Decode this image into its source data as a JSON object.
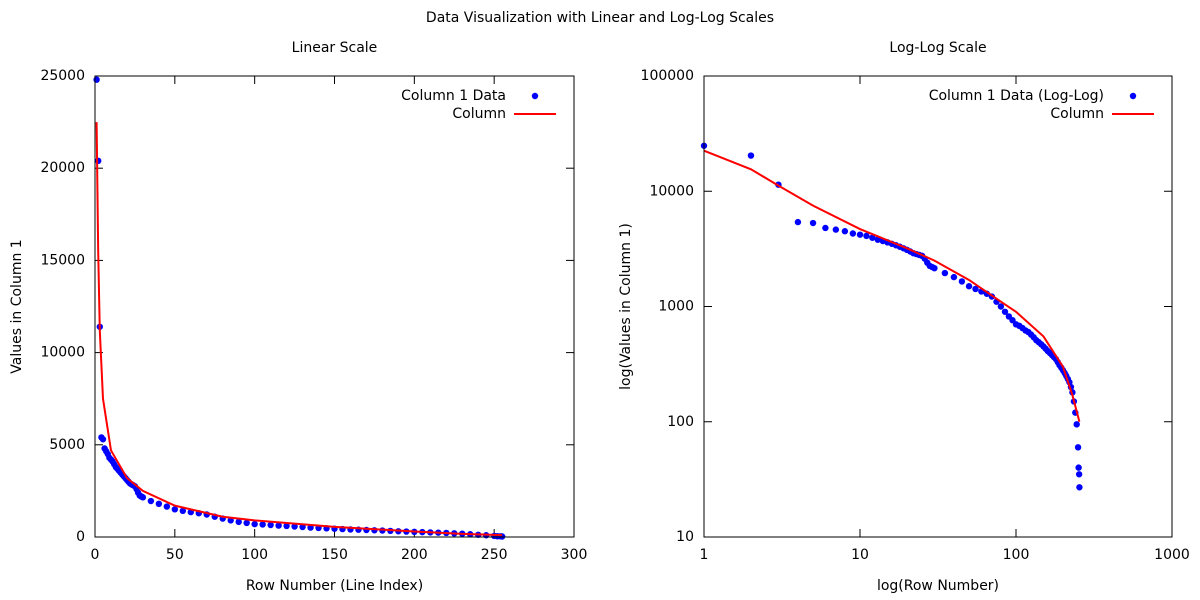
{
  "title": "Data Visualization with Linear and Log-Log Scales",
  "chart_data": [
    {
      "type": "scatter",
      "title": "Linear Scale",
      "xlabel": "Row Number (Line Index)",
      "ylabel": "Values in Column 1",
      "xlim": [
        0,
        300
      ],
      "xticks": [
        0,
        50,
        100,
        150,
        200,
        250,
        300
      ],
      "ylim": [
        0,
        25000
      ],
      "yticks": [
        0,
        5000,
        10000,
        15000,
        20000,
        25000
      ],
      "xscale": "linear",
      "yscale": "linear",
      "legend": "top right",
      "series": [
        {
          "name": "Column 1 Data",
          "color": "#0000ff",
          "style": "points",
          "x": [
            1,
            2,
            3,
            4,
            5,
            6,
            7,
            8,
            9,
            10,
            11,
            12,
            13,
            14,
            15,
            16,
            17,
            18,
            19,
            20,
            21,
            22,
            23,
            24,
            25,
            26,
            27,
            28,
            29,
            30,
            35,
            40,
            45,
            50,
            55,
            60,
            65,
            70,
            75,
            80,
            85,
            90,
            95,
            100,
            105,
            110,
            115,
            120,
            125,
            130,
            135,
            140,
            145,
            150,
            155,
            160,
            165,
            170,
            175,
            180,
            185,
            190,
            195,
            200,
            205,
            210,
            215,
            220,
            225,
            230,
            235,
            240,
            245,
            250,
            252,
            254,
            255
          ],
          "values": [
            24800,
            20400,
            11400,
            5400,
            5300,
            4800,
            4650,
            4500,
            4300,
            4200,
            4100,
            3950,
            3800,
            3700,
            3600,
            3500,
            3400,
            3300,
            3200,
            3100,
            3000,
            2900,
            2850,
            2800,
            2750,
            2600,
            2400,
            2250,
            2200,
            2150,
            1950,
            1800,
            1650,
            1500,
            1420,
            1350,
            1290,
            1220,
            1100,
            1000,
            900,
            820,
            760,
            700,
            680,
            650,
            620,
            600,
            570,
            540,
            510,
            490,
            470,
            450,
            430,
            410,
            395,
            380,
            365,
            350,
            330,
            310,
            295,
            280,
            265,
            250,
            235,
            220,
            200,
            180,
            150,
            120,
            95,
            60,
            40,
            35,
            27
          ]
        },
        {
          "name": "Column",
          "color": "#ff0000",
          "style": "lines",
          "x": [
            1,
            2,
            3,
            5,
            10,
            20,
            30,
            50,
            80,
            100,
            150,
            200,
            230,
            255
          ],
          "values": [
            22500,
            15500,
            11200,
            7500,
            4700,
            3200,
            2500,
            1700,
            1100,
            900,
            550,
            300,
            170,
            100
          ]
        }
      ]
    },
    {
      "type": "scatter",
      "title": "Log-Log Scale",
      "xlabel": "log(Row Number)",
      "ylabel": "log(Values in Column 1)",
      "xlim": [
        1,
        1000
      ],
      "xticks": [
        1,
        10,
        100,
        1000
      ],
      "ylim": [
        10,
        100000
      ],
      "yticks": [
        10,
        100,
        1000,
        10000,
        100000
      ],
      "xscale": "log",
      "yscale": "log",
      "legend": "top right",
      "series": [
        {
          "name": "Column 1 Data (Log-Log)",
          "color": "#0000ff",
          "style": "points",
          "x": [
            1,
            2,
            3,
            4,
            5,
            6,
            7,
            8,
            9,
            10,
            11,
            12,
            13,
            14,
            15,
            16,
            17,
            18,
            19,
            20,
            21,
            22,
            23,
            24,
            25,
            26,
            27,
            28,
            29,
            30,
            35,
            40,
            45,
            50,
            55,
            60,
            65,
            70,
            75,
            80,
            85,
            90,
            95,
            100,
            105,
            110,
            115,
            120,
            125,
            130,
            135,
            140,
            145,
            150,
            155,
            160,
            165,
            170,
            175,
            180,
            185,
            190,
            195,
            200,
            205,
            210,
            215,
            220,
            225,
            230,
            235,
            240,
            245,
            250,
            252,
            254,
            255
          ],
          "values": [
            24800,
            20400,
            11400,
            5400,
            5300,
            4800,
            4650,
            4500,
            4300,
            4200,
            4100,
            3950,
            3800,
            3700,
            3600,
            3500,
            3400,
            3300,
            3200,
            3100,
            3000,
            2900,
            2850,
            2800,
            2750,
            2600,
            2400,
            2250,
            2200,
            2150,
            1950,
            1800,
            1650,
            1500,
            1420,
            1350,
            1290,
            1220,
            1100,
            1000,
            900,
            820,
            760,
            700,
            680,
            650,
            620,
            600,
            570,
            540,
            510,
            490,
            470,
            450,
            430,
            410,
            395,
            380,
            365,
            350,
            330,
            310,
            295,
            280,
            265,
            250,
            235,
            220,
            200,
            180,
            150,
            120,
            95,
            60,
            40,
            35,
            27
          ]
        },
        {
          "name": "Column",
          "color": "#ff0000",
          "style": "lines",
          "x": [
            1,
            2,
            3,
            5,
            10,
            20,
            30,
            50,
            80,
            100,
            150,
            200,
            230,
            255
          ],
          "values": [
            22500,
            15500,
            11200,
            7500,
            4700,
            3200,
            2500,
            1700,
            1100,
            900,
            550,
            300,
            170,
            100
          ]
        }
      ]
    }
  ]
}
